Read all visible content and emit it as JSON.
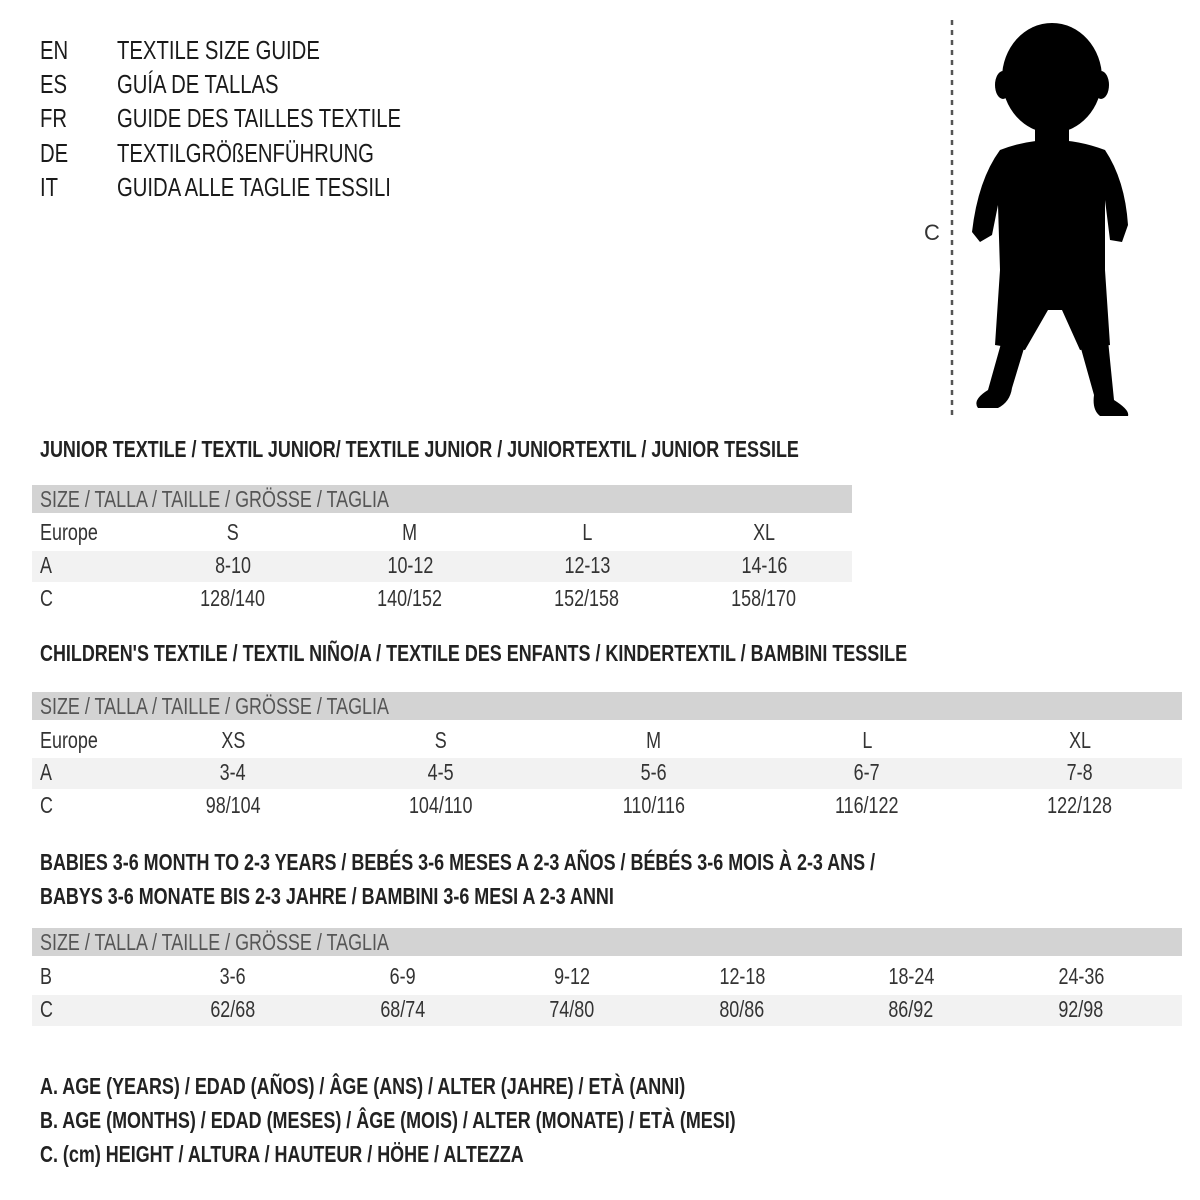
{
  "header": {
    "languages": [
      {
        "code": "EN",
        "title": "TEXTILE SIZE GUIDE"
      },
      {
        "code": "ES",
        "title": "GUÍA DE TALLAS"
      },
      {
        "code": "FR",
        "title": "GUIDE DES TAILLES TEXTILE"
      },
      {
        "code": "DE",
        "title": "TEXTILGRÖßENFÜHRUNG"
      },
      {
        "code": "IT",
        "title": "GUIDA ALLE TAGLIE TESSILI"
      }
    ]
  },
  "figure": {
    "measure_label": "C"
  },
  "tables": [
    {
      "title_lines": [
        "JUNIOR TEXTILE / TEXTIL JUNIOR/ TEXTILE JUNIOR / JUNIORTEXTIL / JUNIOR TESSILE"
      ],
      "size_header": "SIZE / TALLA / TAILLE / GRÖSSE / TAGLIA",
      "rows": [
        {
          "label": "Europe",
          "cells": [
            "S",
            "M",
            "L",
            "XL"
          ]
        },
        {
          "label": "A",
          "cells": [
            "8-10",
            "10-12",
            "12-13",
            "14-16"
          ]
        },
        {
          "label": "C",
          "cells": [
            "128/140",
            "140/152",
            "152/158",
            "158/170"
          ]
        }
      ]
    },
    {
      "title_lines": [
        "CHILDREN'S TEXTILE / TEXTIL NIÑO/A / TEXTILE DES ENFANTS / KINDERTEXTIL / BAMBINI TESSILE"
      ],
      "size_header": "SIZE / TALLA / TAILLE / GRÖSSE / TAGLIA",
      "rows": [
        {
          "label": "Europe",
          "cells": [
            "XS",
            "S",
            "M",
            "L",
            "XL"
          ]
        },
        {
          "label": "A",
          "cells": [
            "3-4",
            "4-5",
            "5-6",
            "6-7",
            "7-8"
          ]
        },
        {
          "label": "C",
          "cells": [
            "98/104",
            "104/110",
            "110/116",
            "116/122",
            "122/128"
          ]
        }
      ]
    },
    {
      "title_lines": [
        "BABIES 3-6 MONTH TO 2-3 YEARS / BEBÉS 3-6 MESES A 2-3 AÑOS / BÉBÉS 3-6 MOIS À 2-3 ANS /",
        "BABYS 3-6 MONATE BIS 2-3 JAHRE / BAMBINI 3-6 MESI A 2-3 ANNI"
      ],
      "size_header": "SIZE / TALLA / TAILLE / GRÖSSE / TAGLIA",
      "rows": [
        {
          "label": "B",
          "cells": [
            "3-6",
            "6-9",
            "9-12",
            "12-18",
            "18-24",
            "24-36"
          ]
        },
        {
          "label": "C",
          "cells": [
            "62/68",
            "68/74",
            "74/80",
            "80/86",
            "86/92",
            "92/98"
          ]
        }
      ]
    }
  ],
  "legend": [
    "A. AGE (YEARS) / EDAD (AÑOS) / ÂGE (ANS) / ALTER (JAHRE) / ETÀ (ANNI)",
    "B. AGE (MONTHS) / EDAD (MESES) / ÂGE (MOIS) / ALTER (MONATE) / ETÀ (MESI)",
    "C. (cm) HEIGHT / ALTURA / HAUTEUR / HÖHE / ALTEZZA"
  ],
  "colors": {
    "header_bar": "#d3d3d3",
    "band": "#f2f2f2",
    "text": "#1a1a1a"
  }
}
